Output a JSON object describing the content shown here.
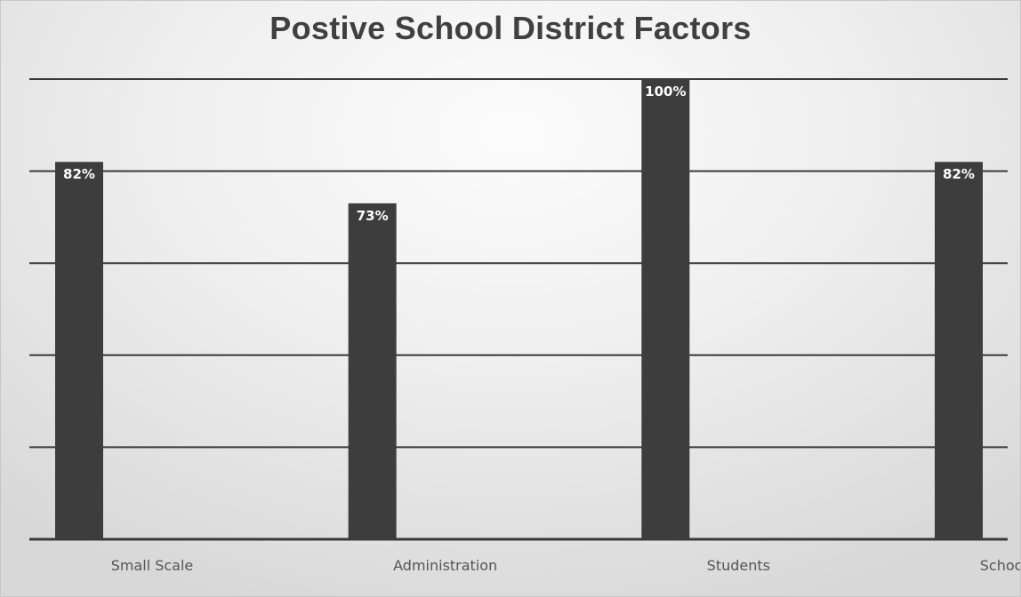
{
  "chart_data": {
    "type": "bar",
    "title": "Postive School District Factors",
    "categories": [
      "Small Scale",
      "Administration",
      "Students",
      "School Culture"
    ],
    "values": [
      82,
      73,
      100,
      82
    ],
    "data_labels": [
      "82%",
      "73%",
      "100%",
      "82%"
    ],
    "ylim": [
      0,
      100
    ],
    "y_gridline_step": 20,
    "grid": true,
    "legend": "none",
    "bar_color": "#3d3d3d",
    "grid_color": "#3a3a3a"
  }
}
